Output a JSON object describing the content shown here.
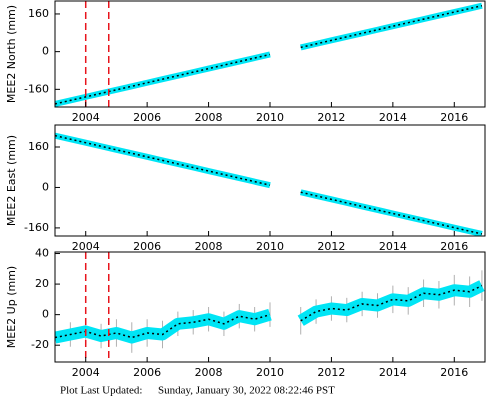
{
  "chart_data": [
    {
      "type": "line",
      "y_label": "MEE2 North (mm)",
      "x": [
        2003,
        2003.5,
        2004,
        2004.5,
        2005,
        2005.5,
        2006,
        2006.5,
        2007,
        2007.5,
        2008,
        2008.5,
        2009,
        2009.5,
        2010,
        2010.5,
        2011,
        2011.5,
        2012,
        2012.5,
        2013,
        2013.5,
        2014,
        2014.5,
        2015,
        2015.5,
        2016,
        2016.5,
        2016.9
      ],
      "values": [
        -222,
        -207,
        -192,
        -177,
        -162,
        -147,
        -132,
        -117,
        -102,
        -87,
        -72,
        -57,
        -42,
        -27,
        -12,
        null,
        18,
        33,
        48,
        63,
        78,
        93,
        108,
        123,
        138,
        153,
        168,
        183,
        195
      ],
      "color": "#00e5f5",
      "line_color": "#000000",
      "xlim": [
        2003,
        2017
      ],
      "xticks": [
        2004,
        2006,
        2008,
        2010,
        2012,
        2014,
        2016
      ],
      "ylim": [
        -235,
        215
      ],
      "yticks": [
        -160,
        0,
        160
      ],
      "vlines": [
        2004,
        2004.75
      ],
      "vline_color": "#e8141c"
    },
    {
      "type": "line",
      "y_label": "MEE2 East (mm)",
      "x": [
        2003,
        2003.5,
        2004,
        2004.5,
        2005,
        2005.5,
        2006,
        2006.5,
        2007,
        2007.5,
        2008,
        2008.5,
        2009,
        2009.5,
        2010,
        2010.5,
        2011,
        2011.5,
        2012,
        2012.5,
        2013,
        2013.5,
        2014,
        2014.5,
        2015,
        2015.5,
        2016,
        2016.5,
        2016.9
      ],
      "values": [
        205,
        191,
        177,
        163,
        149,
        135,
        121,
        107,
        93,
        79,
        65,
        51,
        37,
        23,
        9,
        null,
        -19,
        -33,
        -47,
        -61,
        -75,
        -89,
        -103,
        -117,
        -131,
        -145,
        -159,
        -173,
        -184
      ],
      "color": "#00e5f5",
      "line_color": "#000000",
      "xlim": [
        2003,
        2017
      ],
      "xticks": [
        2004,
        2006,
        2008,
        2010,
        2012,
        2014,
        2016
      ],
      "ylim": [
        -192,
        247
      ],
      "yticks": [
        -160,
        0,
        160
      ]
    },
    {
      "type": "line",
      "y_label": "MEE2 Up (mm)",
      "x": [
        2003,
        2003.5,
        2004,
        2004.5,
        2005,
        2005.5,
        2006,
        2006.5,
        2007,
        2007.5,
        2008,
        2008.5,
        2009,
        2009.5,
        2010,
        2010.5,
        2011,
        2011.5,
        2012,
        2012.5,
        2013,
        2013.5,
        2014,
        2014.5,
        2015,
        2015.5,
        2016,
        2016.5,
        2016.9
      ],
      "values": [
        -15,
        -13,
        -11,
        -14,
        -12,
        -15,
        -12,
        -13,
        -6,
        -5,
        -3,
        -6,
        -1,
        -3,
        0,
        null,
        -4,
        2,
        4,
        3,
        7,
        6,
        10,
        9,
        14,
        13,
        16,
        15,
        19
      ],
      "errors": [
        8,
        8,
        8,
        8,
        9,
        10,
        9,
        9,
        8,
        8,
        8,
        8,
        8,
        8,
        8,
        null,
        9,
        8,
        8,
        8,
        8,
        8,
        9,
        9,
        9,
        9,
        10,
        10,
        10
      ],
      "color": "#00e5f5",
      "line_color": "#000000",
      "error_color": "#b0b0b0",
      "xlim": [
        2003,
        2017
      ],
      "xticks": [
        2004,
        2006,
        2008,
        2010,
        2012,
        2014,
        2016
      ],
      "ylim": [
        -31,
        41
      ],
      "yticks": [
        -20,
        0,
        20,
        40
      ],
      "vlines": [
        2004,
        2004.75
      ],
      "vline_color": "#e8141c"
    }
  ],
  "footer": {
    "label": "Plot Last Updated:",
    "timestamp": "Sunday, January 30, 2022 08:22:46 PST"
  }
}
